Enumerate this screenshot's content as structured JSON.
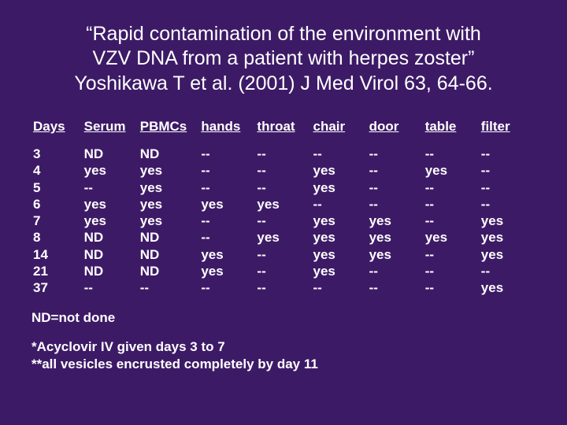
{
  "title_lines": [
    "“Rapid contamination of the environment with",
    "VZV DNA from a patient with herpes zoster”",
    "Yoshikawa T et al. (2001) J Med Virol 63, 64-66."
  ],
  "table": {
    "columns": [
      "Days",
      "Serum",
      "PBMCs",
      "hands",
      "throat",
      "chair",
      "door",
      "table",
      "filter"
    ],
    "rows": [
      [
        "3",
        "ND",
        "ND",
        "--",
        "--",
        "--",
        "--",
        "--",
        "--"
      ],
      [
        "4",
        "yes",
        "yes",
        "--",
        "--",
        "yes",
        "--",
        "yes",
        "--"
      ],
      [
        "5",
        "--",
        "yes",
        "--",
        "--",
        "yes",
        "--",
        "--",
        "--"
      ],
      [
        "6",
        "yes",
        "yes",
        "yes",
        "yes",
        "--",
        "--",
        "--",
        "--"
      ],
      [
        "7",
        "yes",
        "yes",
        "--",
        "--",
        "yes",
        "yes",
        "--",
        "yes"
      ],
      [
        "8",
        "ND",
        "ND",
        "--",
        "yes",
        "yes",
        "yes",
        "yes",
        "yes"
      ],
      [
        "14",
        "ND",
        "ND",
        "yes",
        "--",
        "yes",
        "yes",
        "--",
        "yes"
      ],
      [
        "21",
        "ND",
        "ND",
        "yes",
        "--",
        "yes",
        "--",
        "--",
        "--"
      ],
      [
        "37",
        "--",
        "--",
        "--",
        "--",
        "--",
        "--",
        "--",
        "yes"
      ]
    ]
  },
  "legend": "ND=not done",
  "notes": [
    "*Acyclovir IV given days 3 to 7",
    "**all vesicles encrusted completely by day 11"
  ]
}
